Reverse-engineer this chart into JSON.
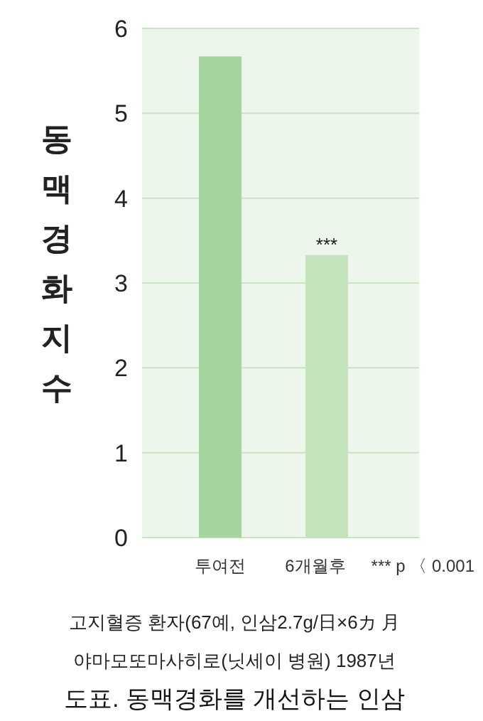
{
  "chart_data": {
    "type": "bar",
    "title": "도표. 동맥경화를 개선하는 인삼",
    "ylabel": "동맥경화지수",
    "categories": [
      "투여전",
      "6개월후"
    ],
    "values": [
      5.67,
      3.33
    ],
    "colors": [
      "#a5d59e",
      "#c4e4bd"
    ],
    "ylim": [
      0,
      6
    ],
    "yticks": [
      0,
      1,
      2,
      3,
      4,
      5,
      6
    ],
    "grid": "y",
    "annotations": [
      {
        "text": "***",
        "x": "6개월후",
        "y": 3.33
      },
      "*** p 〈 0.001",
      "고지혈증 환자(67예, 인삼2.7g/日×6カ 月",
      "야마모또마사히로(닛세이 병원) 1987년"
    ]
  }
}
